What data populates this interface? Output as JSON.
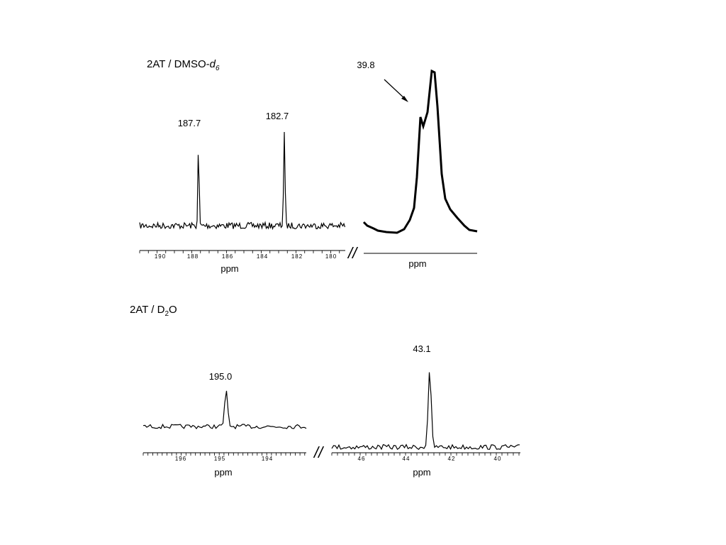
{
  "panels": [
    {
      "title": {
        "text": "2AT / DMSO-",
        "italic": "d",
        "sub": "6"
      },
      "spectra": [
        {
          "peak_labels": [
            "187.7",
            "182.7"
          ],
          "ticks": [
            "190",
            "188",
            "186",
            "184",
            "182",
            "180"
          ],
          "axis_label": "ppm"
        },
        {
          "peak_labels": [
            "39.8"
          ],
          "ticks": [],
          "axis_label": "ppm"
        }
      ]
    },
    {
      "title": {
        "text": "2AT / D",
        "sub": "2",
        "after": "O"
      },
      "spectra": [
        {
          "peak_labels": [
            "195.0"
          ],
          "ticks": [
            "196",
            "195",
            "194"
          ],
          "axis_label": "ppm"
        },
        {
          "peak_labels": [
            "43.1"
          ],
          "ticks": [
            "46",
            "44",
            "42",
            "40"
          ],
          "axis_label": "ppm"
        }
      ]
    }
  ]
}
